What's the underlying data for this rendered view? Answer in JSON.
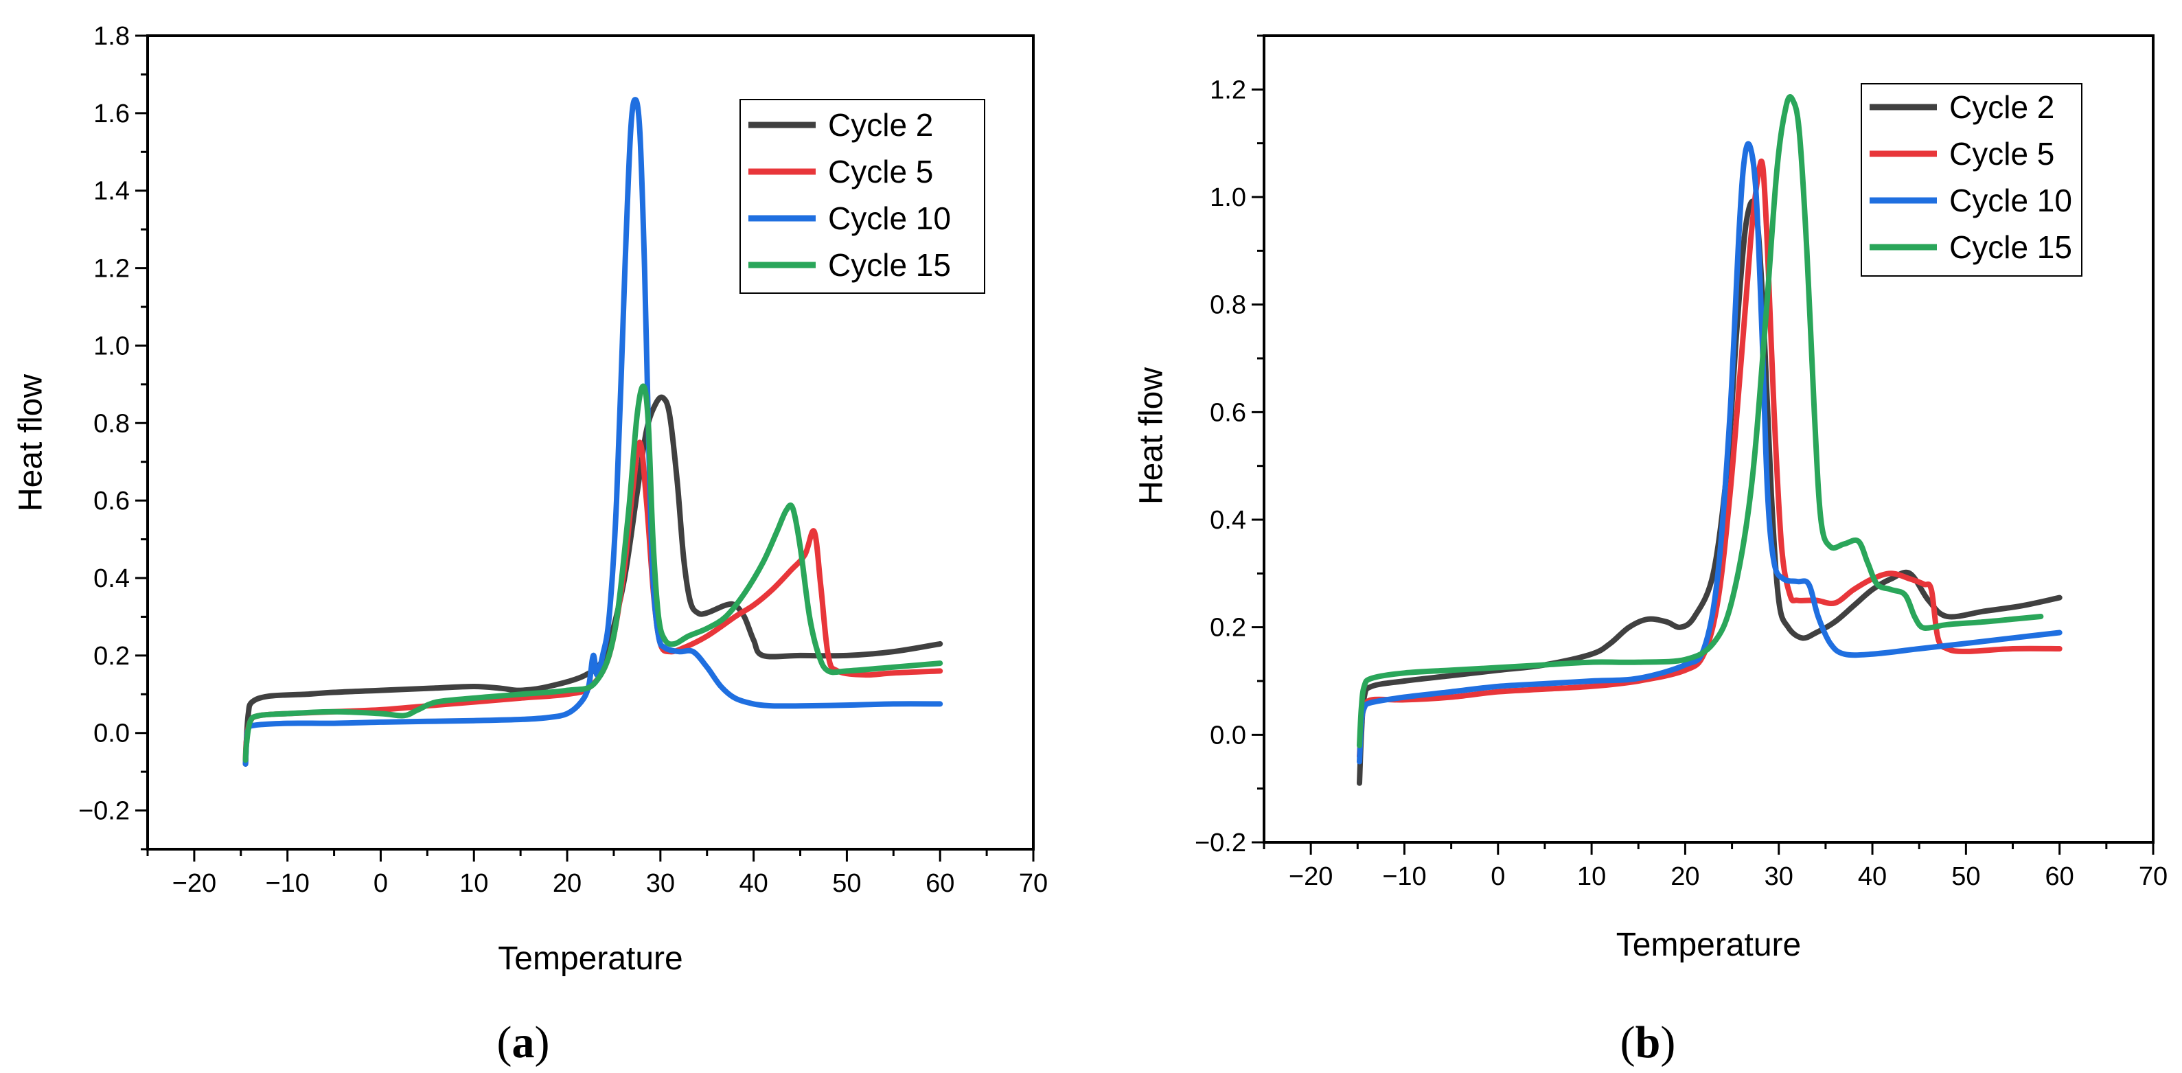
{
  "colors": {
    "cycle2": "#404040",
    "cycle5": "#e8363a",
    "cycle10": "#1f6fe0",
    "cycle15": "#2aa65a"
  },
  "chart_data": [
    {
      "type": "line",
      "panel_label": {
        "open": "(",
        "letter": "a",
        "close": ")"
      },
      "xlabel": "Temperature",
      "ylabel": "Heat flow",
      "xlim": [
        -25,
        70
      ],
      "ylim": [
        -0.3,
        1.8
      ],
      "xticks": [
        -20,
        -10,
        0,
        10,
        20,
        30,
        40,
        50,
        60,
        70
      ],
      "xtick_labels": [
        "−20",
        "−10",
        "0",
        "10",
        "20",
        "30",
        "40",
        "50",
        "60",
        "70"
      ],
      "yticks": [
        -0.2,
        0.0,
        0.2,
        0.4,
        0.6,
        0.8,
        1.0,
        1.2,
        1.4,
        1.6,
        1.8
      ],
      "ytick_labels": [
        "−0.2",
        "0.0",
        "0.2",
        "0.4",
        "0.6",
        "0.8",
        "1.0",
        "1.2",
        "1.4",
        "1.6",
        "1.8"
      ],
      "legend_position": "top-right",
      "series": [
        {
          "name": "Cycle 2",
          "color_key": "cycle2",
          "x": [
            -14.5,
            -14.4,
            -14.2,
            -13.8,
            -12,
            -8,
            -5,
            0,
            5,
            10,
            13,
            15,
            18,
            22,
            24,
            26,
            27.5,
            28.5,
            29.5,
            30.3,
            31,
            31.8,
            32.5,
            33.2,
            34,
            35,
            37,
            38,
            39,
            40,
            41,
            45,
            50,
            55,
            60
          ],
          "y": [
            -0.08,
            -0.02,
            0.05,
            0.08,
            0.095,
            0.1,
            0.105,
            0.11,
            0.115,
            0.12,
            0.115,
            0.11,
            0.12,
            0.15,
            0.2,
            0.38,
            0.62,
            0.78,
            0.85,
            0.865,
            0.82,
            0.65,
            0.45,
            0.34,
            0.31,
            0.31,
            0.33,
            0.33,
            0.3,
            0.24,
            0.2,
            0.2,
            0.2,
            0.21,
            0.23
          ]
        },
        {
          "name": "Cycle 5",
          "color_key": "cycle5",
          "x": [
            -14.5,
            -14.4,
            -14,
            -13,
            -10,
            -5,
            0,
            5,
            10,
            15,
            20,
            22.5,
            24.5,
            26,
            27,
            27.8,
            28.5,
            29.3,
            30,
            31,
            32.5,
            35,
            38,
            40,
            42,
            44,
            45.5,
            46.5,
            47.2,
            48,
            49,
            52,
            55,
            60
          ],
          "y": [
            -0.07,
            -0.02,
            0.03,
            0.045,
            0.05,
            0.055,
            0.06,
            0.07,
            0.08,
            0.09,
            0.1,
            0.12,
            0.2,
            0.4,
            0.62,
            0.75,
            0.6,
            0.35,
            0.23,
            0.21,
            0.22,
            0.25,
            0.3,
            0.33,
            0.37,
            0.42,
            0.46,
            0.52,
            0.38,
            0.2,
            0.16,
            0.15,
            0.155,
            0.16
          ]
        },
        {
          "name": "Cycle 10",
          "color_key": "cycle10",
          "x": [
            -14.5,
            -14.4,
            -14.2,
            -13.5,
            -10,
            -5,
            0,
            5,
            10,
            15,
            18,
            20,
            21.5,
            22.3,
            22.8,
            23.2,
            23.8,
            24.5,
            25.3,
            26.2,
            26.8,
            27.3,
            27.8,
            28.3,
            28.8,
            29.2,
            29.8,
            30.5,
            32,
            33.5,
            35,
            36.5,
            38,
            40,
            42,
            45,
            50,
            55,
            60
          ],
          "y": [
            -0.08,
            -0.03,
            0.01,
            0.02,
            0.025,
            0.025,
            0.028,
            0.03,
            0.032,
            0.035,
            0.04,
            0.05,
            0.08,
            0.12,
            0.2,
            0.15,
            0.2,
            0.3,
            0.6,
            1.2,
            1.55,
            1.635,
            1.55,
            1.2,
            0.7,
            0.4,
            0.25,
            0.22,
            0.21,
            0.21,
            0.17,
            0.12,
            0.09,
            0.075,
            0.07,
            0.07,
            0.072,
            0.075,
            0.075
          ]
        },
        {
          "name": "Cycle 15",
          "color_key": "cycle15",
          "x": [
            -14.5,
            -14.4,
            -14,
            -13,
            -10,
            -5,
            0,
            2.5,
            4,
            6,
            10,
            15,
            20,
            23,
            25,
            26.5,
            27.5,
            28.2,
            28.7,
            29.2,
            29.8,
            30.5,
            31.5,
            33,
            35,
            37,
            39,
            41,
            42.5,
            43.5,
            44.2,
            45,
            46,
            47,
            48,
            50,
            55,
            60
          ],
          "y": [
            -0.07,
            -0.03,
            0.03,
            0.045,
            0.05,
            0.055,
            0.05,
            0.045,
            0.06,
            0.08,
            0.09,
            0.1,
            0.11,
            0.13,
            0.25,
            0.55,
            0.82,
            0.895,
            0.8,
            0.5,
            0.3,
            0.24,
            0.23,
            0.25,
            0.27,
            0.3,
            0.36,
            0.44,
            0.52,
            0.575,
            0.58,
            0.48,
            0.3,
            0.2,
            0.16,
            0.16,
            0.17,
            0.18
          ]
        }
      ]
    },
    {
      "type": "line",
      "panel_label": {
        "open": "(",
        "letter": "b",
        "close": ")"
      },
      "xlabel": "Temperature",
      "ylabel": "Heat flow",
      "xlim": [
        -25,
        70
      ],
      "ylim": [
        -0.2,
        1.3
      ],
      "xticks": [
        -20,
        -10,
        0,
        10,
        20,
        30,
        40,
        50,
        60,
        70
      ],
      "xtick_labels": [
        "−20",
        "−10",
        "0",
        "10",
        "20",
        "30",
        "40",
        "50",
        "60",
        "70"
      ],
      "yticks": [
        -0.2,
        0.0,
        0.2,
        0.4,
        0.6,
        0.8,
        1.0,
        1.2
      ],
      "ytick_labels": [
        "−0.2",
        "0.0",
        "0.2",
        "0.4",
        "0.6",
        "0.8",
        "1.0",
        "1.2"
      ],
      "legend_position": "top-right",
      "series": [
        {
          "name": "Cycle 2",
          "color_key": "cycle2",
          "x": [
            -14.8,
            -14.6,
            -14.3,
            -13.5,
            -10,
            -5,
            0,
            5,
            10,
            12,
            14,
            16,
            18,
            19.5,
            21,
            23,
            24.5,
            25.5,
            26.5,
            27.5,
            28.3,
            29.2,
            30,
            31,
            32.5,
            34,
            36,
            38,
            40,
            42,
            44,
            46,
            48,
            52,
            56,
            60
          ],
          "y": [
            -0.09,
            0.0,
            0.07,
            0.09,
            0.1,
            0.11,
            0.12,
            0.13,
            0.15,
            0.17,
            0.2,
            0.215,
            0.21,
            0.2,
            0.22,
            0.3,
            0.5,
            0.75,
            0.95,
            0.98,
            0.8,
            0.45,
            0.25,
            0.2,
            0.18,
            0.19,
            0.21,
            0.24,
            0.27,
            0.29,
            0.3,
            0.25,
            0.22,
            0.23,
            0.24,
            0.255
          ]
        },
        {
          "name": "Cycle 5",
          "color_key": "cycle5",
          "x": [
            -14.8,
            -14.6,
            -14.3,
            -13.5,
            -10,
            -5,
            0,
            5,
            10,
            15,
            20,
            22,
            23.5,
            24.8,
            26,
            27,
            27.8,
            28.3,
            28.8,
            29.5,
            30.3,
            31.2,
            32,
            34,
            36,
            38,
            40,
            42,
            44,
            45.5,
            46.3,
            47,
            48,
            50,
            55,
            60
          ],
          "y": [
            -0.04,
            0.02,
            0.05,
            0.065,
            0.065,
            0.07,
            0.08,
            0.085,
            0.09,
            0.1,
            0.12,
            0.15,
            0.25,
            0.45,
            0.7,
            0.92,
            1.04,
            1.055,
            0.9,
            0.6,
            0.35,
            0.26,
            0.25,
            0.25,
            0.245,
            0.27,
            0.29,
            0.3,
            0.29,
            0.28,
            0.27,
            0.18,
            0.16,
            0.155,
            0.16,
            0.16
          ]
        },
        {
          "name": "Cycle 10",
          "color_key": "cycle10",
          "x": [
            -14.8,
            -14.6,
            -14.3,
            -13.5,
            -10,
            -5,
            0,
            5,
            10,
            15,
            20,
            22,
            23.5,
            24.8,
            25.8,
            26.4,
            27,
            27.6,
            28.2,
            28.8,
            29.5,
            30.5,
            32,
            33.2,
            34.2,
            35.5,
            37,
            40,
            45,
            50,
            55,
            60
          ],
          "y": [
            -0.05,
            0.02,
            0.05,
            0.06,
            0.07,
            0.08,
            0.09,
            0.095,
            0.1,
            0.105,
            0.13,
            0.16,
            0.3,
            0.6,
            0.95,
            1.08,
            1.09,
            1.0,
            0.75,
            0.45,
            0.32,
            0.29,
            0.285,
            0.28,
            0.22,
            0.17,
            0.15,
            0.15,
            0.16,
            0.17,
            0.18,
            0.19
          ]
        },
        {
          "name": "Cycle 15",
          "color_key": "cycle15",
          "x": [
            -14.8,
            -14.6,
            -14.3,
            -13.5,
            -10,
            -5,
            0,
            5,
            10,
            15,
            20,
            23,
            25,
            27,
            28.5,
            29.8,
            30.8,
            31.5,
            32.2,
            33,
            33.8,
            34.5,
            35.5,
            37,
            38.5,
            39.5,
            40.5,
            42,
            43.5,
            44.5,
            45.3,
            46.5,
            48,
            52,
            55,
            58
          ],
          "y": [
            -0.02,
            0.05,
            0.09,
            0.105,
            0.115,
            0.12,
            0.125,
            0.13,
            0.135,
            0.135,
            0.14,
            0.17,
            0.25,
            0.45,
            0.75,
            1.05,
            1.17,
            1.18,
            1.12,
            0.9,
            0.6,
            0.4,
            0.35,
            0.355,
            0.36,
            0.32,
            0.28,
            0.27,
            0.26,
            0.22,
            0.2,
            0.2,
            0.205,
            0.21,
            0.215,
            0.22
          ]
        }
      ]
    }
  ]
}
